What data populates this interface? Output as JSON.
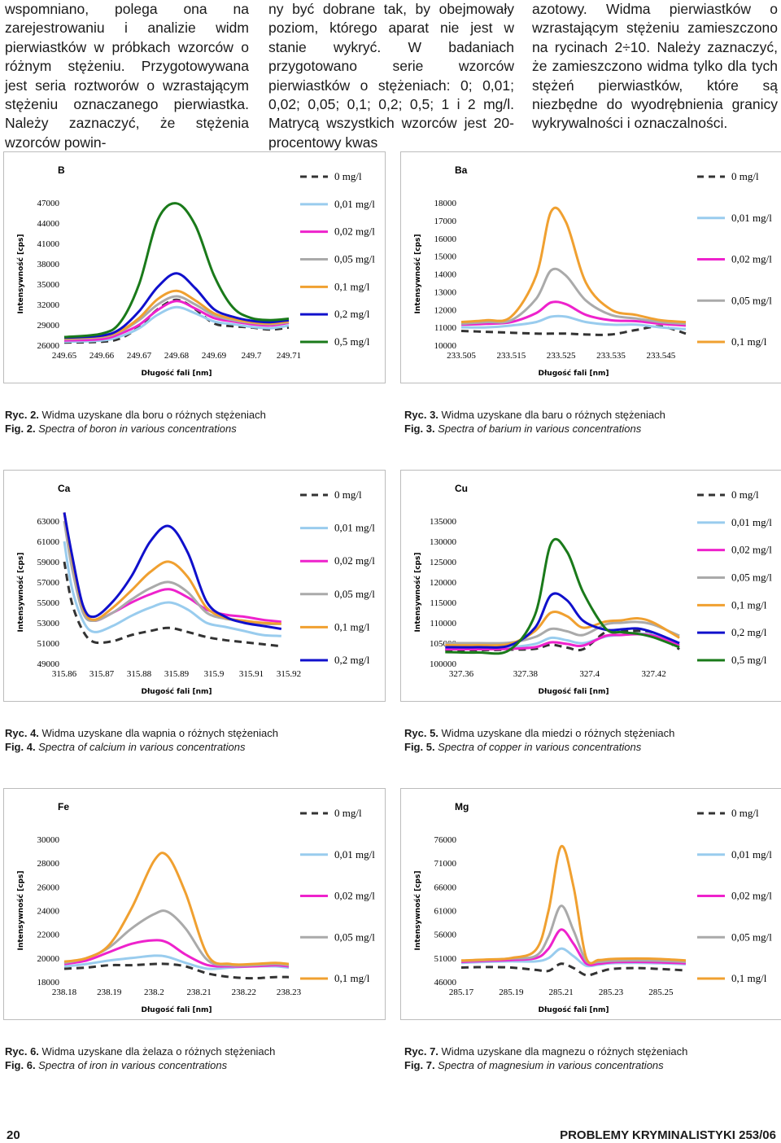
{
  "columns": [
    "wspomniano, polega ona na zarejestrowaniu i analizie widm pierwiastków w próbkach wzorców o różnym stężeniu. Przygotowywana jest seria roztworów o wzrastającym stężeniu oznaczanego pierwiastka. Należy zaznaczyć, że stężenia wzorców powin-",
    "ny być dobrane tak, by obejmowały poziom, którego aparat nie jest w stanie wykryć. W badaniach przygotowano serie wzorców pierwiastków o stężeniach: 0; 0,01; 0,02; 0,05; 0,1; 0,2; 0,5; 1 i 2 mg/l. Matrycą wszystkich wzorców jest 20-procentowy kwas",
    "azotowy. Widma pierwiastków o wzrastającym stężeniu zamieszczono na rycinach 2÷10. Należy zaznaczyć, że zamieszczono widma tylko dla tych stężeń pierwiastków, które są niezbędne do wyodrębnienia granicy wykrywalności i oznaczalności."
  ],
  "figures": [
    {
      "ryc_label": "Ryc. 2.",
      "ryc_text": " Widma uzyskane dla boru o różnych stężeniach",
      "fig_label": "Fig. 2.",
      "fig_text": " Spectra of boron in various concentrations"
    },
    {
      "ryc_label": "Ryc. 3.",
      "ryc_text": " Widma uzyskane dla baru o różnych stężeniach",
      "fig_label": "Fig. 3.",
      "fig_text": " Spectra of barium in various concentrations"
    },
    {
      "ryc_label": "Ryc. 4.",
      "ryc_text": " Widma uzyskane dla wapnia o różnych stężeniach",
      "fig_label": "Fig. 4.",
      "fig_text": " Spectra of calcium in various concentrations"
    },
    {
      "ryc_label": "Ryc. 5.",
      "ryc_text": " Widma uzyskane dla miedzi o różnych stężeniach",
      "fig_label": "Fig. 5.",
      "fig_text": " Spectra of copper in various concentrations"
    },
    {
      "ryc_label": "Ryc. 6.",
      "ryc_text": " Widma uzyskane dla żelaza o różnych stężeniach",
      "fig_label": "Fig. 6.",
      "fig_text": " Spectra of iron in various concentrations"
    },
    {
      "ryc_label": "Ryc. 7.",
      "ryc_text": " Widma uzyskane dla magnezu o różnych stężeniach",
      "fig_label": "Fig. 7.",
      "fig_text": " Spectra of magnesium in various concentrations"
    }
  ],
  "footer": {
    "page_number": "20",
    "journal": "PROBLEMY KRYMINALISTYKI 253/06"
  },
  "series_colors": {
    "0 mg/l": "#333333",
    "0,01 mg/l": "#99ccee",
    "0,02 mg/l": "#ee22cc",
    "0,05 mg/l": "#aaaaaa",
    "0,1 mg/l": "#f0a030",
    "0,2 mg/l": "#1010cc",
    "0,5 mg/l": "#1a7a1a"
  },
  "chart_data": [
    {
      "type": "line",
      "title": "B",
      "xlabel": "Długość fali [nm]",
      "ylabel": "Intensywność [cps]",
      "ylim": [
        26000,
        47000
      ],
      "xlim": [
        249.65,
        249.71
      ],
      "x_ticks": [
        "249.65",
        "249.66",
        "249.67",
        "249.68",
        "249.69",
        "249.7",
        "249.71"
      ],
      "y_ticks": [
        "26000",
        "29000",
        "32000",
        "35000",
        "38000",
        "41000",
        "44000",
        "47000"
      ],
      "x": [
        249.65,
        249.66,
        249.665,
        249.67,
        249.675,
        249.68,
        249.685,
        249.69,
        249.695,
        249.7,
        249.705,
        249.71
      ],
      "series": [
        {
          "name": "0 mg/l",
          "values": [
            26400,
            26500,
            27000,
            28700,
            31300,
            32700,
            31300,
            29200,
            28800,
            28600,
            28300,
            28600
          ]
        },
        {
          "name": "0,01 mg/l",
          "values": [
            26500,
            26700,
            27300,
            28500,
            30500,
            31600,
            30700,
            29500,
            29100,
            28700,
            28500,
            28900
          ]
        },
        {
          "name": "0,02 mg/l",
          "values": [
            26700,
            26900,
            27700,
            29000,
            31200,
            32500,
            31400,
            30000,
            29500,
            29100,
            28900,
            29300
          ]
        },
        {
          "name": "0,05 mg/l",
          "values": [
            26900,
            27200,
            28000,
            29700,
            32000,
            33200,
            32000,
            30400,
            29700,
            29300,
            29100,
            29400
          ]
        },
        {
          "name": "0,1 mg/l",
          "values": [
            27000,
            27300,
            28100,
            30000,
            32800,
            34000,
            32600,
            30700,
            29900,
            29400,
            29200,
            29500
          ]
        },
        {
          "name": "0,2 mg/l",
          "values": [
            27100,
            27400,
            28400,
            31000,
            34600,
            36600,
            34400,
            31300,
            30200,
            29600,
            29400,
            29700
          ]
        },
        {
          "name": "0,5 mg/l",
          "values": [
            27200,
            27700,
            29400,
            35000,
            44500,
            46900,
            43700,
            36300,
            31600,
            30000,
            29700,
            29900
          ]
        }
      ]
    },
    {
      "type": "line",
      "title": "Ba",
      "xlabel": "Długość fali [nm]",
      "ylabel": "Intensywność [cps]",
      "ylim": [
        10000,
        18000
      ],
      "xlim": [
        233.505,
        233.55
      ],
      "x_ticks": [
        "233.505",
        "233.515",
        "233.525",
        "233.535",
        "233.545"
      ],
      "y_ticks": [
        "10000",
        "11000",
        "12000",
        "13000",
        "14000",
        "15000",
        "16000",
        "17000",
        "18000"
      ],
      "x": [
        233.505,
        233.51,
        233.515,
        233.52,
        233.523,
        233.526,
        233.53,
        233.535,
        233.54,
        233.545,
        233.55
      ],
      "series": [
        {
          "name": "0 mg/l",
          "values": [
            10800,
            10750,
            10700,
            10650,
            10650,
            10650,
            10600,
            10600,
            10850,
            11050,
            10650
          ]
        },
        {
          "name": "0,01 mg/l",
          "values": [
            11000,
            11000,
            11100,
            11300,
            11600,
            11600,
            11300,
            11150,
            11150,
            11000,
            10900
          ]
        },
        {
          "name": "0,02 mg/l",
          "values": [
            11150,
            11200,
            11300,
            11800,
            12400,
            12300,
            11700,
            11400,
            11350,
            11200,
            11100
          ]
        },
        {
          "name": "0,05 mg/l",
          "values": [
            11200,
            11300,
            11400,
            12600,
            14200,
            13900,
            12500,
            11700,
            11500,
            11300,
            11200
          ]
        },
        {
          "name": "0,1 mg/l",
          "values": [
            11300,
            11400,
            11600,
            13900,
            17500,
            16900,
            13500,
            12000,
            11700,
            11400,
            11300
          ]
        }
      ]
    },
    {
      "type": "line",
      "title": "Ca",
      "xlabel": "Długość fali [nm]",
      "ylabel": "Intensywność [cps]",
      "ylim": [
        49000,
        63000
      ],
      "xlim": [
        315.86,
        315.92
      ],
      "x_ticks": [
        "315.86",
        "315.87",
        "315.88",
        "315.89",
        "315.9",
        "315.91",
        "315.92"
      ],
      "y_ticks": [
        "49000",
        "51000",
        "53000",
        "55000",
        "57000",
        "59000",
        "61000",
        "63000"
      ],
      "x": [
        315.86,
        315.862,
        315.865,
        315.868,
        315.873,
        315.878,
        315.883,
        315.888,
        315.893,
        315.898,
        315.903,
        315.908,
        315.913,
        315.918
      ],
      "series": [
        {
          "name": "0 mg/l",
          "values": [
            59000,
            55000,
            52200,
            51100,
            51200,
            51800,
            52200,
            52500,
            52100,
            51600,
            51300,
            51100,
            50900,
            50700
          ]
        },
        {
          "name": "0,01 mg/l",
          "values": [
            61000,
            56500,
            53200,
            52100,
            52700,
            53700,
            54500,
            55000,
            54300,
            53000,
            52600,
            52200,
            51800,
            51700
          ]
        },
        {
          "name": "0,02 mg/l",
          "values": [
            64500,
            59000,
            54200,
            53200,
            54000,
            55000,
            55800,
            56300,
            55500,
            54300,
            53800,
            53600,
            53300,
            53100
          ]
        },
        {
          "name": "0,05 mg/l",
          "values": [
            63000,
            58500,
            54000,
            53200,
            54000,
            55300,
            56400,
            57000,
            56000,
            54000,
            53400,
            53200,
            52900,
            52900
          ]
        },
        {
          "name": "0,1 mg/l",
          "values": [
            64000,
            59500,
            54500,
            53300,
            54500,
            56200,
            58000,
            59000,
            57500,
            54500,
            53500,
            53200,
            53000,
            52900
          ]
        },
        {
          "name": "0,2 mg/l",
          "values": [
            64000,
            59800,
            54700,
            53600,
            55100,
            57600,
            61000,
            62500,
            59900,
            55100,
            53600,
            53000,
            52700,
            52400
          ]
        }
      ]
    },
    {
      "type": "line",
      "title": "Cu",
      "xlabel": "Długość fali [nm]",
      "ylabel": "Intensywność [cps]",
      "ylim": [
        100000,
        135000
      ],
      "xlim": [
        327.36,
        327.43
      ],
      "x_ticks": [
        "327.36",
        "327.38",
        "327.4",
        "327.42"
      ],
      "y_ticks": [
        "100000",
        "105000",
        "110000",
        "115000",
        "120000",
        "125000",
        "130000",
        "135000"
      ],
      "x": [
        327.355,
        327.365,
        327.375,
        327.383,
        327.388,
        327.393,
        327.398,
        327.405,
        327.41,
        327.415,
        327.42,
        327.428
      ],
      "series": [
        {
          "name": "0 mg/l",
          "values": [
            103300,
            103300,
            103400,
            103600,
            104600,
            103900,
            103500,
            107700,
            107900,
            108000,
            107500,
            103500
          ]
        },
        {
          "name": "0,01 mg/l",
          "values": [
            104000,
            104000,
            104000,
            104800,
            106300,
            105700,
            105000,
            106600,
            107000,
            107300,
            107000,
            105000
          ]
        },
        {
          "name": "0,02 mg/l",
          "values": [
            103500,
            103500,
            103600,
            104000,
            105200,
            104800,
            104400,
            106800,
            107000,
            107200,
            106800,
            104500
          ]
        },
        {
          "name": "0,05 mg/l",
          "values": [
            105000,
            105000,
            105100,
            106500,
            108500,
            107900,
            107000,
            109600,
            110000,
            110200,
            109500,
            106800
          ]
        },
        {
          "name": "0,1 mg/l",
          "values": [
            104500,
            104500,
            104800,
            108000,
            112500,
            111600,
            108800,
            110300,
            110600,
            111100,
            110000,
            106300
          ]
        },
        {
          "name": "0,2 mg/l",
          "values": [
            104000,
            104000,
            104400,
            108800,
            116800,
            115500,
            110500,
            108300,
            108400,
            108600,
            107600,
            105000
          ]
        },
        {
          "name": "0,5 mg/l",
          "values": [
            102800,
            102700,
            103300,
            112000,
            129500,
            127400,
            117500,
            108600,
            107700,
            107300,
            106400,
            104000
          ]
        }
      ]
    },
    {
      "type": "line",
      "title": "Fe",
      "xlabel": "Długość fali [nm]",
      "ylabel": "Intensywność [cps]",
      "ylim": [
        18000,
        30000
      ],
      "xlim": [
        238.18,
        238.23
      ],
      "x_ticks": [
        "238.18",
        "238.19",
        "238.2",
        "238.21",
        "238.22",
        "238.23"
      ],
      "y_ticks": [
        "18000",
        "20000",
        "22000",
        "24000",
        "26000",
        "28000",
        "30000"
      ],
      "x": [
        238.18,
        238.185,
        238.19,
        238.195,
        238.2,
        238.203,
        238.207,
        238.212,
        238.217,
        238.222,
        238.227,
        238.23
      ],
      "series": [
        {
          "name": "0 mg/l",
          "values": [
            19100,
            19200,
            19400,
            19400,
            19500,
            19500,
            19300,
            18700,
            18400,
            18300,
            18400,
            18400
          ]
        },
        {
          "name": "0,01 mg/l",
          "values": [
            19300,
            19500,
            19800,
            20000,
            20200,
            20100,
            19600,
            19100,
            19200,
            19300,
            19300,
            19200
          ]
        },
        {
          "name": "0,02 mg/l",
          "values": [
            19500,
            19800,
            20500,
            21200,
            21500,
            21300,
            20300,
            19400,
            19300,
            19300,
            19400,
            19300
          ]
        },
        {
          "name": "0,05 mg/l",
          "values": [
            19600,
            20000,
            20900,
            22500,
            23700,
            23900,
            22500,
            19800,
            19400,
            19400,
            19500,
            19400
          ]
        },
        {
          "name": "0,1 mg/l",
          "values": [
            19700,
            20000,
            21100,
            24200,
            28200,
            28600,
            25500,
            20200,
            19500,
            19500,
            19600,
            19500
          ]
        }
      ]
    },
    {
      "type": "line",
      "title": "Mg",
      "xlabel": "Długość fali [nm]",
      "ylabel": "Intensywność [cps]",
      "ylim": [
        46000,
        76000
      ],
      "xlim": [
        285.17,
        285.26
      ],
      "x_ticks": [
        "285.17",
        "285.19",
        "285.21",
        "285.23",
        "285.25"
      ],
      "y_ticks": [
        "46000",
        "51000",
        "56000",
        "61000",
        "66000",
        "71000",
        "76000"
      ],
      "x": [
        285.17,
        285.18,
        285.19,
        285.2,
        285.205,
        285.21,
        285.215,
        285.22,
        285.225,
        285.23,
        285.24,
        285.25,
        285.26
      ],
      "series": [
        {
          "name": "0 mg/l",
          "values": [
            49000,
            49100,
            49000,
            48500,
            48300,
            49800,
            48900,
            47400,
            48000,
            48700,
            48900,
            48700,
            48400
          ]
        },
        {
          "name": "0,01 mg/l",
          "values": [
            50000,
            50200,
            50300,
            50300,
            51000,
            53000,
            51400,
            49400,
            49600,
            49900,
            50000,
            49900,
            49700
          ]
        },
        {
          "name": "0,02 mg/l",
          "values": [
            50200,
            50400,
            50600,
            51000,
            53000,
            57000,
            54000,
            49900,
            49800,
            50100,
            50200,
            50100,
            49900
          ]
        },
        {
          "name": "0,05 mg/l",
          "values": [
            50400,
            50600,
            50900,
            51500,
            55500,
            62000,
            56800,
            50500,
            50200,
            50400,
            50500,
            50400,
            50200
          ]
        },
        {
          "name": "0,1 mg/l",
          "values": [
            50500,
            50700,
            51000,
            52800,
            61000,
            74500,
            66000,
            51200,
            50600,
            50800,
            50900,
            50800,
            50500
          ]
        }
      ]
    }
  ]
}
